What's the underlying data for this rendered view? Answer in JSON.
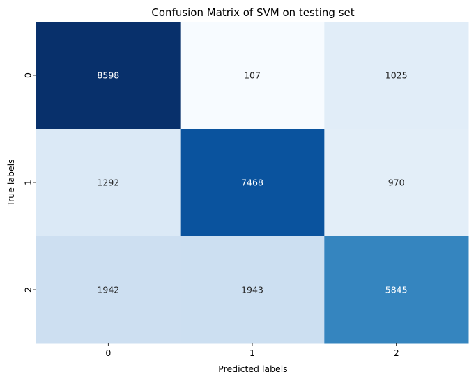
{
  "chart_data": {
    "type": "heatmap",
    "title": "Confusion Matrix of SVM on testing set",
    "xlabel": "Predicted labels",
    "ylabel": "True labels",
    "x_categories": [
      "0",
      "1",
      "2"
    ],
    "y_categories": [
      "0",
      "1",
      "2"
    ],
    "values": [
      [
        8598,
        107,
        1025
      ],
      [
        1292,
        7468,
        970
      ],
      [
        1942,
        1943,
        5845
      ]
    ],
    "colormap": "Blues",
    "colorbar": false,
    "annotated": true,
    "grid": false
  }
}
